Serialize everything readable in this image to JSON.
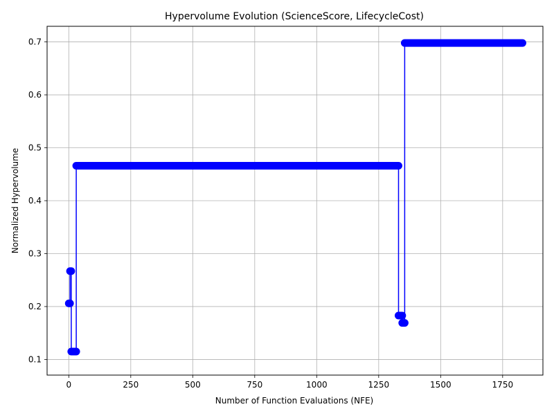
{
  "chart_data": {
    "type": "line",
    "title": "Hypervolume Evolution (ScienceScore, LifecycleCost)",
    "xlabel": "Number of Function Evaluations (NFE)",
    "ylabel": "Normalized Hypervolume",
    "xlim": [
      -87.5,
      1912.5
    ],
    "ylim": [
      0.0705,
      0.7295
    ],
    "xticks": [
      0,
      250,
      500,
      750,
      1000,
      1250,
      1500,
      1750
    ],
    "yticks": [
      0.1,
      0.2,
      0.3,
      0.4,
      0.5,
      0.6,
      0.7
    ],
    "xtick_labels": [
      "0",
      "250",
      "500",
      "750",
      "1000",
      "1250",
      "1500",
      "1750"
    ],
    "ytick_labels": [
      "0.1",
      "0.2",
      "0.3",
      "0.4",
      "0.5",
      "0.6",
      "0.7"
    ],
    "grid": true,
    "marker": "circle",
    "color": "#0000ff",
    "segments": [
      {
        "x_start": 0,
        "x_end": 5,
        "y": 0.206
      },
      {
        "x_start": 5,
        "x_end": 10,
        "y": 0.267
      },
      {
        "x_start": 10,
        "x_end": 30,
        "y": 0.115
      },
      {
        "x_start": 30,
        "x_end": 1330,
        "y": 0.466
      },
      {
        "x_start": 1330,
        "x_end": 1345,
        "y": 0.183
      },
      {
        "x_start": 1345,
        "x_end": 1355,
        "y": 0.169
      },
      {
        "x_start": 1355,
        "x_end": 1830,
        "y": 0.698
      }
    ]
  }
}
